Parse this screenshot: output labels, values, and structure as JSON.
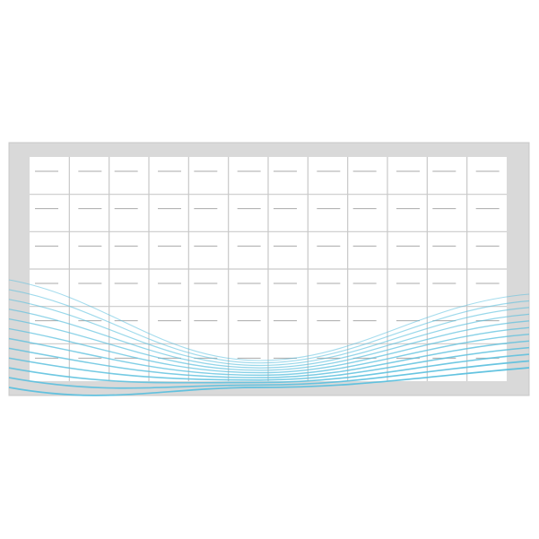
{
  "colors": {
    "frame": "#d9d9d9",
    "frame_border": "#c8c8c8",
    "panel": "#ffffff",
    "grid_line": "#c9c9c9",
    "tick": "#aaaaaa",
    "wave": "#5bc0de"
  },
  "grid": {
    "columns": 12,
    "rows": 6
  },
  "icon": "wavy-lines-grid-pattern"
}
